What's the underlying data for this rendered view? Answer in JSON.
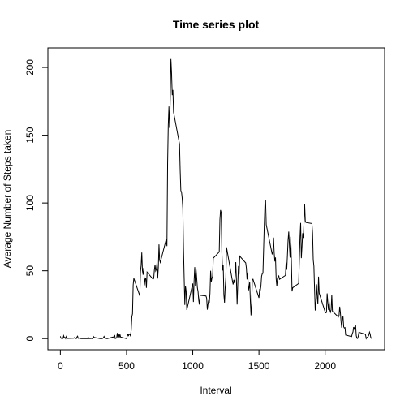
{
  "chart_data": {
    "type": "line",
    "title": "Time series plot",
    "xlabel": "Interval",
    "ylabel": "Average Number of Steps taken",
    "color": "#000000",
    "x": [
      0,
      5,
      10,
      15,
      20,
      25,
      30,
      35,
      40,
      45,
      50,
      55,
      100,
      105,
      110,
      115,
      120,
      125,
      130,
      135,
      140,
      145,
      150,
      155,
      200,
      205,
      210,
      215,
      220,
      225,
      230,
      235,
      240,
      245,
      250,
      255,
      300,
      305,
      310,
      315,
      320,
      325,
      330,
      335,
      340,
      345,
      350,
      355,
      400,
      405,
      410,
      415,
      420,
      425,
      430,
      435,
      440,
      445,
      450,
      455,
      500,
      505,
      510,
      515,
      520,
      525,
      530,
      535,
      540,
      545,
      550,
      555,
      600,
      605,
      610,
      615,
      620,
      625,
      630,
      635,
      640,
      645,
      650,
      655,
      700,
      705,
      710,
      715,
      720,
      725,
      730,
      735,
      740,
      745,
      750,
      755,
      800,
      805,
      810,
      815,
      820,
      825,
      830,
      835,
      840,
      845,
      850,
      855,
      900,
      905,
      910,
      915,
      920,
      925,
      930,
      935,
      940,
      945,
      950,
      955,
      1000,
      1005,
      1010,
      1015,
      1020,
      1025,
      1030,
      1035,
      1040,
      1045,
      1050,
      1055,
      1100,
      1105,
      1110,
      1115,
      1120,
      1125,
      1130,
      1135,
      1140,
      1145,
      1150,
      1155,
      1200,
      1205,
      1210,
      1215,
      1220,
      1225,
      1230,
      1235,
      1240,
      1245,
      1250,
      1255,
      1300,
      1305,
      1310,
      1315,
      1320,
      1325,
      1330,
      1335,
      1340,
      1345,
      1350,
      1355,
      1400,
      1405,
      1410,
      1415,
      1420,
      1425,
      1430,
      1435,
      1440,
      1445,
      1450,
      1455,
      1500,
      1505,
      1510,
      1515,
      1520,
      1525,
      1530,
      1535,
      1540,
      1545,
      1550,
      1555,
      1600,
      1605,
      1610,
      1615,
      1620,
      1625,
      1630,
      1635,
      1640,
      1645,
      1650,
      1655,
      1700,
      1705,
      1710,
      1715,
      1720,
      1725,
      1730,
      1735,
      1740,
      1745,
      1750,
      1755,
      1800,
      1805,
      1810,
      1815,
      1820,
      1825,
      1830,
      1835,
      1840,
      1845,
      1850,
      1855,
      1900,
      1905,
      1910,
      1915,
      1920,
      1925,
      1930,
      1935,
      1940,
      1945,
      1950,
      1955,
      2000,
      2005,
      2010,
      2015,
      2020,
      2025,
      2030,
      2035,
      2040,
      2045,
      2050,
      2055,
      2100,
      2105,
      2110,
      2115,
      2120,
      2125,
      2130,
      2135,
      2140,
      2145,
      2150,
      2155,
      2200,
      2205,
      2210,
      2215,
      2220,
      2225,
      2230,
      2235,
      2240,
      2245,
      2250,
      2255,
      2300,
      2305,
      2310,
      2315,
      2320,
      2325,
      2330,
      2335,
      2340,
      2345,
      2350,
      2355
    ],
    "values": [
      1.7,
      0.3,
      0.1,
      0.2,
      0.1,
      2.1,
      0.5,
      0.9,
      0,
      1.5,
      0.3,
      0.1,
      0.3,
      0.7,
      0.2,
      0.3,
      0,
      1.1,
      1.8,
      0.2,
      0.2,
      0.4,
      0.3,
      0,
      0,
      0,
      1.1,
      0,
      0,
      0.1,
      0,
      0.2,
      0,
      0,
      1.5,
      0.9,
      0,
      0,
      0,
      0,
      0.2,
      0.6,
      1.6,
      0.6,
      0.5,
      0.1,
      0,
      0,
      1.2,
      0.9,
      2.6,
      0,
      0.3,
      0.4,
      4.1,
      0.7,
      3.5,
      0.8,
      3.1,
      1.1,
      0,
      1.6,
      3,
      2.2,
      3.3,
      3,
      2.1,
      6,
      16,
      18.3,
      39.5,
      44.5,
      31.5,
      49.3,
      53.8,
      63.5,
      50,
      47.1,
      52.2,
      39.3,
      44,
      44.2,
      37.4,
      49,
      43.8,
      44.4,
      50.5,
      54.5,
      49.9,
      51,
      55.7,
      44.3,
      52.3,
      69.5,
      57.8,
      56.2,
      73.4,
      68.2,
      129.4,
      157.5,
      171.2,
      155.4,
      177.3,
      206.2,
      195.9,
      179.6,
      183.4,
      167,
      143.5,
      124,
      109.1,
      108.1,
      103.7,
      96,
      66.2,
      45.2,
      24.8,
      38.8,
      35,
      21.1,
      40.6,
      27,
      42.4,
      52.7,
      38.9,
      50.8,
      44.3,
      37.4,
      34.7,
      28.3,
      25.1,
      31.9,
      31.4,
      29.7,
      21.3,
      25.5,
      28.4,
      26.5,
      33.4,
      50,
      42,
      44.6,
      46,
      59.3,
      63.9,
      87.7,
      94.8,
      92.8,
      63.4,
      50.2,
      54.5,
      32.4,
      26.5,
      37.7,
      45.1,
      67.3,
      42.3,
      39.9,
      43.3,
      41,
      46.2,
      56.4,
      42.8,
      25.1,
      40,
      53.5,
      47.3,
      60.8,
      55.8,
      52,
      43.6,
      48.7,
      35.5,
      37.5,
      41.8,
      27.5,
      17.1,
      26.1,
      43.6,
      43.8,
      30,
      36.1,
      35.5,
      38.8,
      46,
      47.8,
      48.1,
      65.3,
      82.9,
      98.7,
      102.1,
      84,
      62.1,
      64.1,
      74.5,
      63.2,
      56.9,
      59.8,
      43.9,
      38.6,
      44.7,
      45.5,
      46.2,
      43.7,
      46.6,
      56.3,
      50.7,
      61.2,
      72.7,
      78.9,
      68.9,
      59.7,
      75.1,
      56.5,
      34.8,
      37.5,
      40.7,
      58,
      74.7,
      85.3,
      59.3,
      67.8,
      77.7,
      74.2,
      85.3,
      99.5,
      86.6,
      85.6,
      84.9,
      77.8,
      58,
      53.4,
      36.3,
      20.7,
      27.4,
      40,
      30.2,
      25.5,
      45.7,
      33.5,
      19.6,
      19,
      19.3,
      33.3,
      26.8,
      21.2,
      27.3,
      21.3,
      19.5,
      21.3,
      32.3,
      20.2,
      15.9,
      17.2,
      23.5,
      19.2,
      12.5,
      8,
      14.7,
      16.3,
      8.7,
      7.8,
      8.1,
      2.6,
      1.5,
      3.7,
      4.8,
      8.5,
      7.1,
      8.7,
      9.8,
      2.2,
      0.3,
      0.1,
      1.6,
      4.6,
      3.3,
      2.8,
      0,
      0.8,
      1,
      1.6,
      2.6,
      4.7,
      3.3,
      0.6,
      0.2,
      1.1
    ],
    "xlim": [
      -94.2,
      2449.2
    ],
    "ylim": [
      -8.25,
      214.4
    ],
    "xticks": [
      0,
      500,
      1000,
      1500,
      2000
    ],
    "yticks": [
      0,
      50,
      100,
      150,
      200
    ]
  }
}
